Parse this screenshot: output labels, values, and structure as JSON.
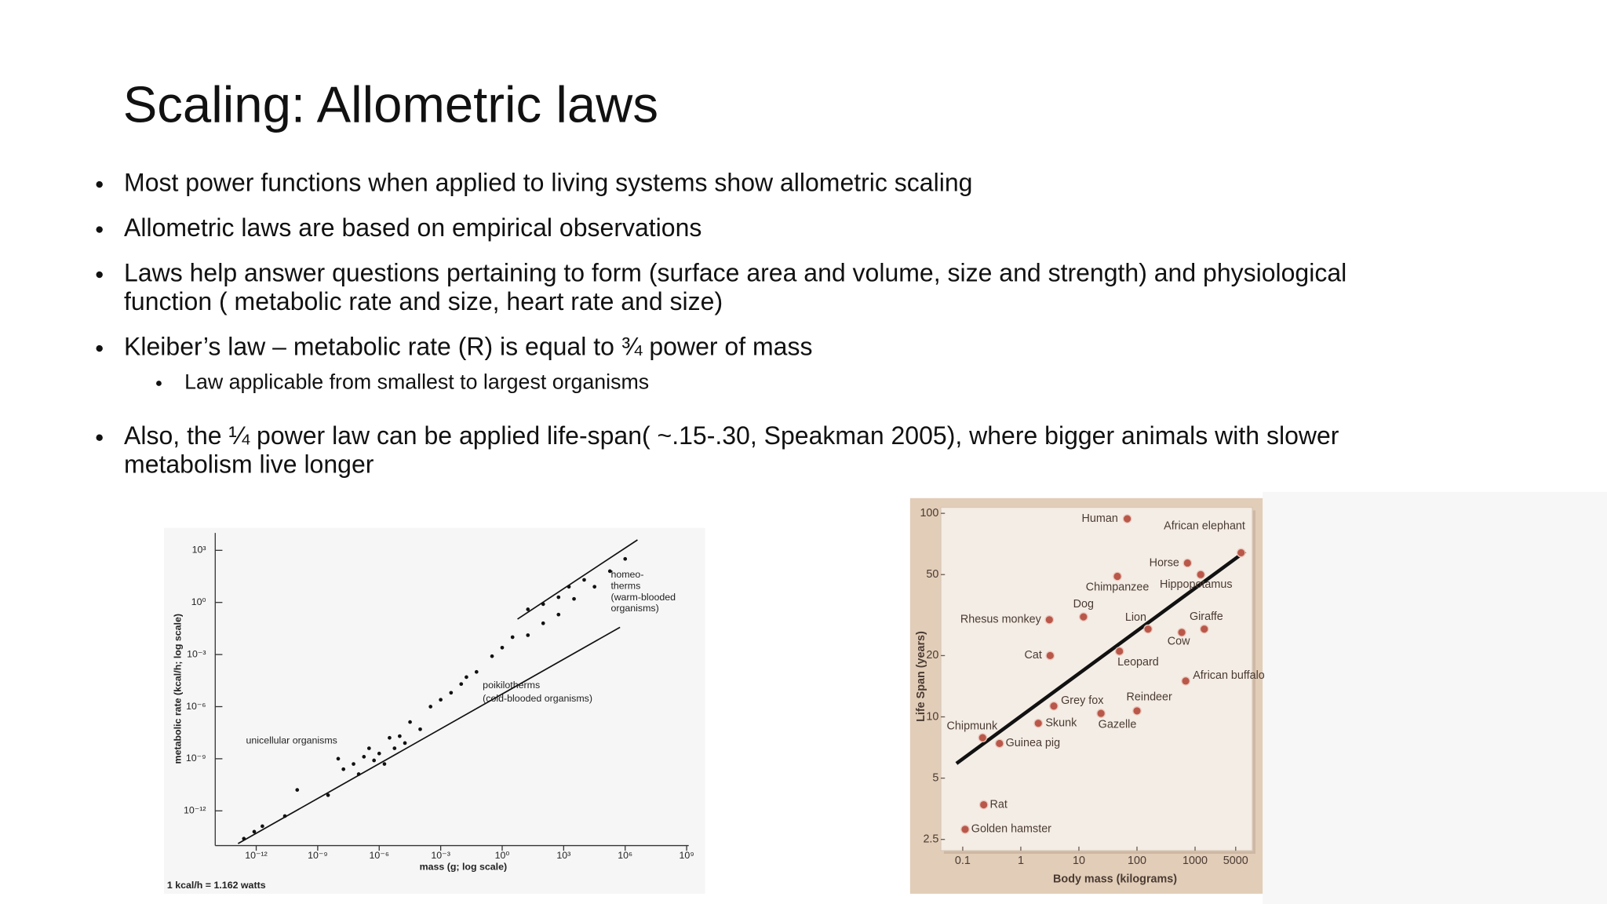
{
  "slide": {
    "title": "Scaling: Allometric laws",
    "bullets": [
      {
        "lines": [
          "Most power functions when applied to living systems show allometric scaling"
        ]
      },
      {
        "lines": [
          "Allometric laws are based on empirical observations"
        ]
      },
      {
        "lines": [
          "Laws help answer questions pertaining to form (surface area and volume, size and strength) and physiological",
          "function ( metabolic rate and size, heart rate and size)"
        ]
      },
      {
        "lines": [
          "Kleiber’s law – metabolic rate (R) is equal to ¾ power of mass"
        ],
        "sub": [
          {
            "lines": [
              "Law applicable from smallest to largest organisms"
            ]
          }
        ]
      },
      {
        "lines": [
          "Also, the ¼ power law can be applied life-span( ~.15-.30, Speakman 2005), where bigger animals with slower",
          "metabolism live longer"
        ]
      }
    ]
  },
  "chart_data": [
    {
      "type": "scatter",
      "xscale": "log",
      "yscale": "log",
      "xlabel": "mass (g; log scale)",
      "ylabel": "metabolic rate (kcal/h; log scale)",
      "note": "1 kcal/h = 1.162 watts",
      "annotations": [
        {
          "lines": [
            "unicellular organisms"
          ]
        },
        {
          "lines": [
            "poikilotherms",
            "(cold-blooded organisms)"
          ]
        },
        {
          "lines": [
            "homeo-",
            "therms",
            "(warm-blooded",
            "organisms)"
          ]
        }
      ],
      "xlim": [
        1e-14,
        1260000000.0
      ],
      "ylim": [
        1e-14,
        10000.0
      ],
      "xticks": [
        {
          "value": 1e-12,
          "label": "10⁻¹²"
        },
        {
          "value": 1e-09,
          "label": "10⁻⁹"
        },
        {
          "value": 1e-06,
          "label": "10⁻⁶"
        },
        {
          "value": 0.001,
          "label": "10⁻³"
        },
        {
          "value": 1,
          "label": "10⁰"
        },
        {
          "value": 1000,
          "label": "10³"
        },
        {
          "value": 1000000.0,
          "label": "10⁶"
        },
        {
          "value": 1000000000.0,
          "label": "10⁹"
        }
      ],
      "yticks": [
        {
          "value": 1e-12,
          "label": "10⁻¹²"
        },
        {
          "value": 1e-09,
          "label": "10⁻⁹"
        },
        {
          "value": 1e-06,
          "label": "10⁻⁶"
        },
        {
          "value": 0.001,
          "label": "10⁻³"
        },
        {
          "value": 1,
          "label": "10⁰"
        },
        {
          "value": 1000,
          "label": "10³"
        }
      ],
      "color": "#111111",
      "series": [
        {
          "x": [
            2.5e-13,
            8e-13,
            2e-12,
            2.5e-11,
            1e-10,
            3.2e-09,
            1e-08,
            1.8e-08,
            5.6e-08,
            1e-07,
            1.8e-07,
            3.2e-07,
            5.6e-07,
            1e-06,
            1.8e-06,
            3.2e-06,
            5.6e-06,
            1e-05,
            1.8e-05,
            3.2e-05,
            0.0001,
            0.00032,
            0.001,
            0.0032,
            0.01,
            0.018,
            0.056,
            0.32,
            1,
            3.2,
            18,
            100,
            560,
            3200
          ],
          "y": [
            2.5e-14,
            6.3e-14,
            1.3e-13,
            5e-13,
            1.6e-11,
            8e-12,
            1e-09,
            2.5e-10,
            5e-10,
            1.3e-10,
            1.3e-09,
            4e-09,
            8e-10,
            2e-09,
            5e-10,
            1.6e-08,
            4e-09,
            2e-08,
            8e-09,
            1.3e-07,
            5e-08,
            1e-06,
            2.5e-06,
            6.3e-06,
            2e-05,
            5e-05,
            0.0001,
            0.0008,
            0.0025,
            0.01,
            0.013,
            0.063,
            0.2,
            1.6
          ]
        },
        {
          "x": [
            18,
            100,
            560,
            1800,
            10000,
            32000,
            180000,
            1000000
          ],
          "y": [
            0.4,
            0.8,
            2,
            8,
            20,
            8,
            63,
            320
          ]
        }
      ],
      "fit_lines": [
        {
          "x": [
            1.3e-13,
            560000
          ],
          "y": [
            1.3e-14,
            0.037
          ]
        },
        {
          "x": [
            5.6,
            4000000
          ],
          "y": [
            0.11,
            4000
          ]
        }
      ]
    },
    {
      "type": "scatter",
      "xscale": "log",
      "yscale": "log",
      "xlabel": "Body mass (kilograms)",
      "ylabel": "Life Span (years)",
      "xlim": [
        0.042,
        9700
      ],
      "ylim": [
        2.2,
        107
      ],
      "xticks": [
        0.1,
        1,
        10,
        100,
        1000,
        5000
      ],
      "yticks": [
        2.5,
        5,
        10,
        20,
        50,
        100
      ],
      "color": "#b9584a",
      "categories": [
        "Human",
        "African elephant",
        "Horse",
        "Hippopotamus",
        "Chimpanzee",
        "Dog",
        "Rhesus monkey",
        "Lion",
        "Leopard",
        "Giraffe",
        "Cow",
        "Cat",
        "African buffalo",
        "Grey fox",
        "Reindeer",
        "Skunk",
        "Gazelle",
        "Chipmunk",
        "Guinea pig",
        "Rat",
        "Golden hamster"
      ],
      "x": [
        68,
        6200,
        740,
        1250,
        46,
        12,
        3.1,
        155,
        50,
        1440,
        590,
        3.2,
        690,
        3.7,
        100,
        2.0,
        24,
        0.22,
        0.43,
        0.23,
        0.11
      ],
      "y": [
        94,
        64,
        57,
        50,
        49,
        31,
        30,
        27,
        21,
        27,
        26,
        20,
        15,
        11.3,
        10.7,
        9.3,
        10.4,
        7.9,
        7.4,
        3.7,
        2.8
      ],
      "fit_line": {
        "x": [
          0.078,
          7300
        ],
        "y": [
          5.9,
          65
        ]
      }
    }
  ]
}
